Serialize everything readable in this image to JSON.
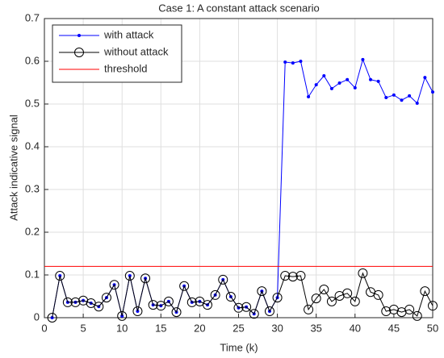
{
  "chart_data": {
    "type": "line",
    "title": "Case 1: A constant attack scenario",
    "x_label": "Time (k)",
    "y_label": "Attack indicative signal",
    "x": [
      1,
      2,
      3,
      4,
      5,
      6,
      7,
      8,
      9,
      10,
      11,
      12,
      13,
      14,
      15,
      16,
      17,
      18,
      19,
      20,
      21,
      22,
      23,
      24,
      25,
      26,
      27,
      28,
      29,
      30,
      31,
      32,
      33,
      34,
      35,
      36,
      37,
      38,
      39,
      40,
      41,
      42,
      43,
      44,
      45,
      46,
      47,
      48,
      49,
      50
    ],
    "series": [
      {
        "name": "with attack",
        "color": "#0000ff",
        "marker": "dot",
        "values": [
          0.0,
          0.098,
          0.036,
          0.036,
          0.04,
          0.034,
          0.026,
          0.047,
          0.077,
          0.004,
          0.098,
          0.015,
          0.092,
          0.03,
          0.028,
          0.038,
          0.013,
          0.074,
          0.036,
          0.038,
          0.03,
          0.053,
          0.089,
          0.049,
          0.023,
          0.025,
          0.009,
          0.062,
          0.015,
          0.047,
          0.598,
          0.596,
          0.6,
          0.517,
          0.545,
          0.566,
          0.536,
          0.549,
          0.557,
          0.538,
          0.604,
          0.557,
          0.553,
          0.515,
          0.521,
          0.509,
          0.519,
          0.502,
          0.562,
          0.528
        ]
      },
      {
        "name": "without attack",
        "color": "#000000",
        "marker": "circle",
        "values": [
          0.0,
          0.098,
          0.036,
          0.036,
          0.04,
          0.034,
          0.026,
          0.047,
          0.077,
          0.004,
          0.098,
          0.015,
          0.092,
          0.03,
          0.028,
          0.038,
          0.013,
          0.074,
          0.036,
          0.038,
          0.03,
          0.053,
          0.089,
          0.049,
          0.023,
          0.025,
          0.009,
          0.062,
          0.015,
          0.047,
          0.098,
          0.096,
          0.098,
          0.019,
          0.045,
          0.066,
          0.038,
          0.051,
          0.057,
          0.038,
          0.104,
          0.06,
          0.053,
          0.015,
          0.019,
          0.013,
          0.019,
          0.004,
          0.062,
          0.028
        ]
      },
      {
        "name": "threshold",
        "color": "#ff0000",
        "marker": "none",
        "x": [
          0,
          50
        ],
        "values": [
          0.12,
          0.12
        ]
      }
    ],
    "xlim": [
      0,
      50
    ],
    "xticks": [
      0,
      5,
      10,
      15,
      20,
      25,
      30,
      35,
      40,
      45,
      50
    ],
    "ylim": [
      0,
      0.7
    ],
    "yticks": [
      0,
      0.1,
      0.2,
      0.3,
      0.4,
      0.5,
      0.6,
      0.7
    ],
    "grid": true,
    "legend": "upper-left"
  }
}
